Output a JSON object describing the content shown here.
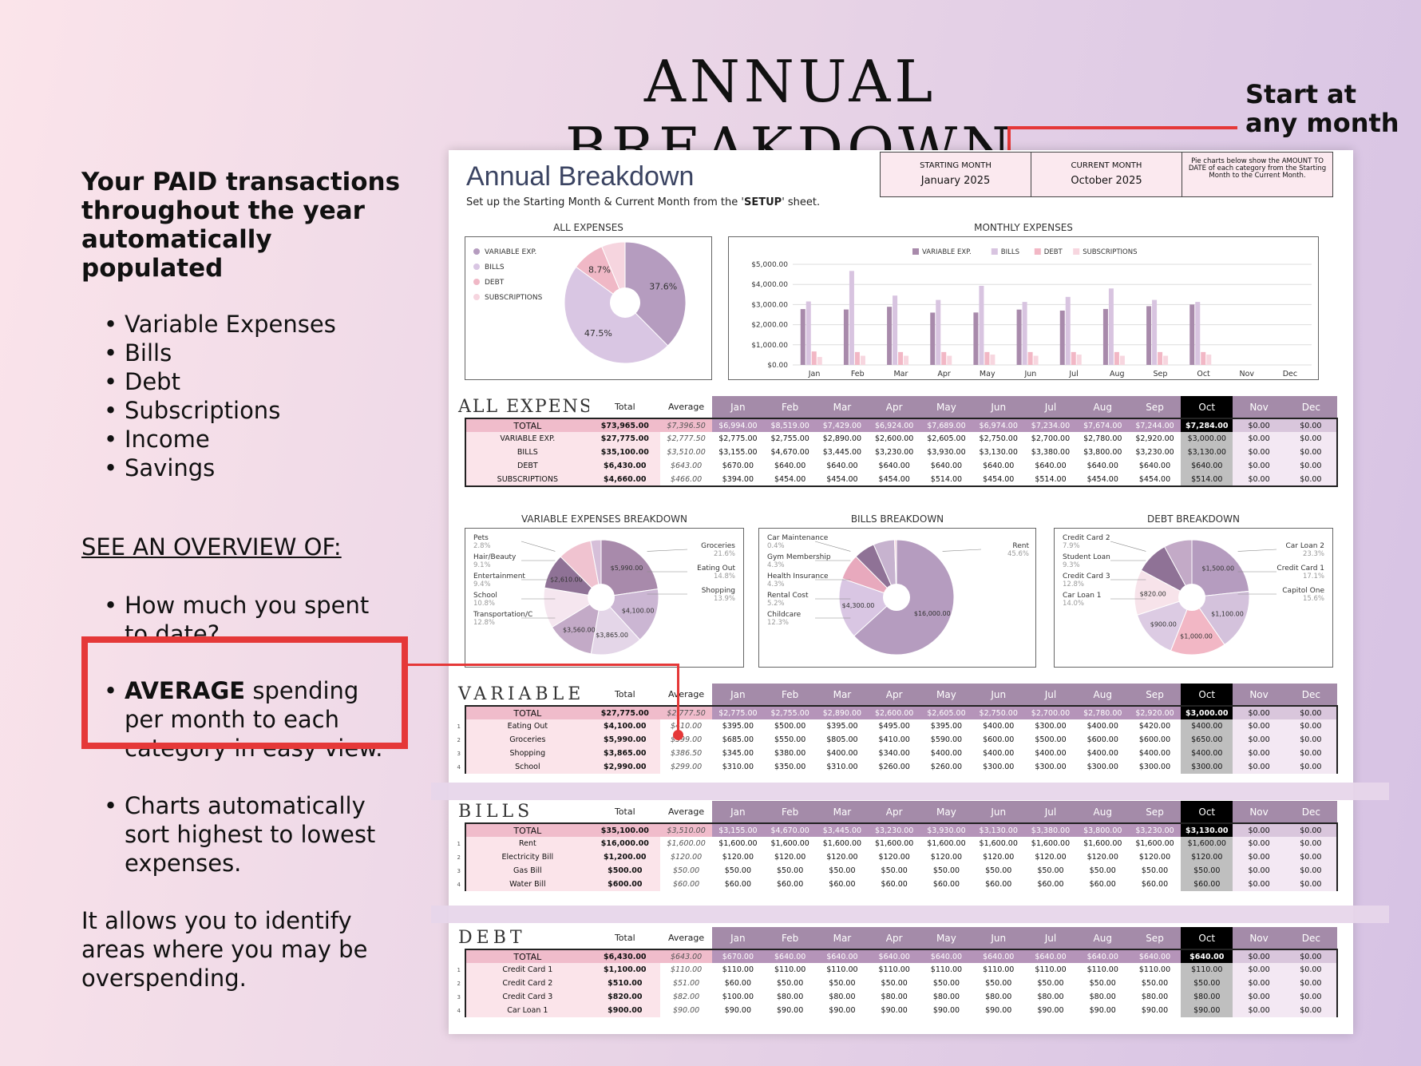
{
  "page": {
    "title": "ANNUAL BREAKDOWN",
    "callout": [
      "Start at",
      "any month"
    ]
  },
  "left": {
    "heading": [
      "Your PAID transactions",
      "throughout the year",
      "automatically populated"
    ],
    "bullets": [
      "Variable Expenses",
      "Bills",
      "Debt",
      "Subscriptions",
      "Income",
      "Savings"
    ],
    "overview": "SEE AN OVERVIEW OF:",
    "q1": [
      "How much you spent",
      "to date?"
    ],
    "q2_bold": "AVERAGE",
    "q2": [
      " spending",
      "per month to each",
      "category in easy view."
    ],
    "q3": [
      "Charts automatically",
      "sort highest to lowest",
      "expenses."
    ],
    "allows": [
      "It allows you to identify",
      "areas where you may be",
      "overspending."
    ]
  },
  "sheet": {
    "title": "Annual Breakdown",
    "subtitle_pre": "Set up the Starting Month & Current Month from the '",
    "subtitle_bold": "SETUP",
    "subtitle_post": "' sheet.",
    "starting_label": "STARTING MONTH",
    "starting_value": "January  2025",
    "current_label": "CURRENT MONTH",
    "current_value": "October  2025",
    "note": "Pie charts below show the AMOUNT TO DATE of each category from the Starting Month to the Current Month."
  },
  "chart_data": [
    {
      "type": "pie",
      "title": "ALL EXPENSES",
      "categories": [
        "VARIABLE EXP.",
        "BILLS",
        "DEBT",
        "SUBSCRIPTIONS"
      ],
      "values": [
        37.6,
        47.5,
        8.7,
        6.3
      ],
      "labels": [
        "37.6%",
        "47.5%",
        "8.7%",
        ""
      ],
      "colors": [
        "#b59cbf",
        "#d9c6e3",
        "#f0b8c6",
        "#f6d5df"
      ]
    },
    {
      "type": "bar",
      "title": "MONTHLY EXPENSES",
      "categories": [
        "Jan",
        "Feb",
        "Mar",
        "Apr",
        "May",
        "Jun",
        "Jul",
        "Aug",
        "Sep",
        "Oct",
        "Nov",
        "Dec"
      ],
      "ylim": [
        0,
        5000
      ],
      "yticks": [
        "$0.00",
        "$1,000.00",
        "$2,000.00",
        "$3,000.00",
        "$4,000.00",
        "$5,000.00"
      ],
      "series": [
        {
          "name": "VARIABLE EXP.",
          "color": "#a88aab",
          "values": [
            2775,
            2755,
            2890,
            2600,
            2605,
            2750,
            2700,
            2780,
            2920,
            3000,
            0,
            0
          ]
        },
        {
          "name": "BILLS",
          "color": "#d8c4e0",
          "values": [
            3155,
            4670,
            3445,
            3230,
            3930,
            3130,
            3380,
            3800,
            3230,
            3130,
            0,
            0
          ]
        },
        {
          "name": "DEBT",
          "color": "#f2b7c5",
          "values": [
            670,
            640,
            640,
            640,
            640,
            640,
            640,
            640,
            640,
            640,
            0,
            0
          ]
        },
        {
          "name": "SUBSCRIPTIONS",
          "color": "#f7d6df",
          "values": [
            394,
            454,
            454,
            454,
            514,
            454,
            514,
            454,
            454,
            514,
            0,
            0
          ]
        }
      ]
    },
    {
      "type": "pie",
      "title": "VARIABLE EXPENSES BREAKDOWN",
      "categories": [
        "Groceries",
        "Eating Out",
        "Shopping",
        "Transportation/C",
        "School",
        "Entertainment",
        "Hair/Beauty",
        "Pets"
      ],
      "values": [
        21.6,
        14.8,
        13.9,
        12.8,
        10.8,
        9.4,
        9.1,
        2.8
      ],
      "pct": [
        "21.6%",
        "14.8%",
        "13.9%",
        "12.8%",
        "10.8%",
        "9.4%",
        "9.1%",
        "2.8%"
      ],
      "labels": [
        "$5,990.00",
        "$4,100.00",
        "$3,865.00",
        "$3,560.00",
        "",
        "$2,610.00",
        "",
        ""
      ],
      "colors": [
        "#a88aab",
        "#cbb6d3",
        "#e4d6e8",
        "#c3aac7",
        "#f5e6ef",
        "#8f7296",
        "#f0c3d0",
        "#d6bfd9"
      ]
    },
    {
      "type": "pie",
      "title": "BILLS BREAKDOWN",
      "categories": [
        "Rent",
        "Childcare",
        "Rental Cost",
        "Health Insurance",
        "Gym Membership",
        "Car Maintenance"
      ],
      "values": [
        45.6,
        12.3,
        5.2,
        4.3,
        4.3,
        0.4
      ],
      "pct": [
        "45.6%",
        "12.3%",
        "5.2%",
        "4.3%",
        "4.3%",
        "0.4%"
      ],
      "labels": [
        "$16,000.00",
        "$4,300.00",
        "",
        "",
        "",
        ""
      ],
      "colors": [
        "#b59cbf",
        "#d9c6e3",
        "#e8a9bd",
        "#8f7296",
        "#c7b3cf",
        "#f6d5df",
        "#a88aab",
        "#f0c3d0",
        "#e4d6e8",
        "#b89bb8",
        "#d3b8d8",
        "#f5e6ef",
        "#9a7ea3"
      ]
    },
    {
      "type": "pie",
      "title": "DEBT BREAKDOWN",
      "categories": [
        "Car Loan 2",
        "Credit Card 1",
        "Capitol One",
        "Car Loan 1",
        "Credit Card 3",
        "Student Loan",
        "Credit Card 2"
      ],
      "values": [
        23.3,
        17.1,
        15.6,
        14.0,
        12.8,
        9.3,
        7.9
      ],
      "pct": [
        "23.3%",
        "17.1%",
        "15.6%",
        "14.0%",
        "12.8%",
        "9.3%",
        "7.9%"
      ],
      "labels": [
        "$1,500.00",
        "$1,100.00",
        "$1,000.00",
        "$900.00",
        "$820.00",
        "",
        ""
      ],
      "colors": [
        "#b59cbf",
        "#d4c2dc",
        "#f2b7c5",
        "#dccbe3",
        "#f7e3ea",
        "#8f7296",
        "#c3aac7"
      ]
    }
  ],
  "tables": {
    "months": [
      "Jan",
      "Feb",
      "Mar",
      "Apr",
      "May",
      "Jun",
      "Jul",
      "Aug",
      "Sep",
      "Oct",
      "Nov",
      "Dec"
    ],
    "total_label": "Total",
    "average_label": "Average",
    "row_total": "TOTAL",
    "all": {
      "title": "ALL EXPENSES",
      "total": [
        "$73,965.00",
        "$7,396.50",
        "$6,994.00",
        "$8,519.00",
        "$7,429.00",
        "$6,924.00",
        "$7,689.00",
        "$6,974.00",
        "$7,234.00",
        "$7,674.00",
        "$7,244.00",
        "$7,284.00",
        "$0.00",
        "$0.00"
      ],
      "rows": [
        [
          "",
          "VARIABLE EXP.",
          "$27,775.00",
          "$2,777.50",
          "$2,775.00",
          "$2,755.00",
          "$2,890.00",
          "$2,600.00",
          "$2,605.00",
          "$2,750.00",
          "$2,700.00",
          "$2,780.00",
          "$2,920.00",
          "$3,000.00",
          "$0.00",
          "$0.00"
        ],
        [
          "",
          "BILLS",
          "$35,100.00",
          "$3,510.00",
          "$3,155.00",
          "$4,670.00",
          "$3,445.00",
          "$3,230.00",
          "$3,930.00",
          "$3,130.00",
          "$3,380.00",
          "$3,800.00",
          "$3,230.00",
          "$3,130.00",
          "$0.00",
          "$0.00"
        ],
        [
          "",
          "DEBT",
          "$6,430.00",
          "$643.00",
          "$670.00",
          "$640.00",
          "$640.00",
          "$640.00",
          "$640.00",
          "$640.00",
          "$640.00",
          "$640.00",
          "$640.00",
          "$640.00",
          "$0.00",
          "$0.00"
        ],
        [
          "",
          "SUBSCRIPTIONS",
          "$4,660.00",
          "$466.00",
          "$394.00",
          "$454.00",
          "$454.00",
          "$454.00",
          "$514.00",
          "$454.00",
          "$514.00",
          "$454.00",
          "$454.00",
          "$514.00",
          "$0.00",
          "$0.00"
        ]
      ]
    },
    "variable": {
      "title": "VARIABLE",
      "total": [
        "$27,775.00",
        "$2,777.50",
        "$2,775.00",
        "$2,755.00",
        "$2,890.00",
        "$2,600.00",
        "$2,605.00",
        "$2,750.00",
        "$2,700.00",
        "$2,780.00",
        "$2,920.00",
        "$3,000.00",
        "$0.00",
        "$0.00"
      ],
      "rows": [
        [
          "1",
          "Eating Out",
          "$4,100.00",
          "$410.00",
          "$395.00",
          "$500.00",
          "$395.00",
          "$495.00",
          "$395.00",
          "$400.00",
          "$300.00",
          "$400.00",
          "$420.00",
          "$400.00",
          "$0.00",
          "$0.00"
        ],
        [
          "2",
          "Groceries",
          "$5,990.00",
          "$599.00",
          "$685.00",
          "$550.00",
          "$805.00",
          "$410.00",
          "$590.00",
          "$600.00",
          "$500.00",
          "$600.00",
          "$600.00",
          "$650.00",
          "$0.00",
          "$0.00"
        ],
        [
          "3",
          "Shopping",
          "$3,865.00",
          "$386.50",
          "$345.00",
          "$380.00",
          "$400.00",
          "$340.00",
          "$400.00",
          "$400.00",
          "$400.00",
          "$400.00",
          "$400.00",
          "$400.00",
          "$0.00",
          "$0.00"
        ],
        [
          "4",
          "School",
          "$2,990.00",
          "$299.00",
          "$310.00",
          "$350.00",
          "$310.00",
          "$260.00",
          "$260.00",
          "$300.00",
          "$300.00",
          "$300.00",
          "$300.00",
          "$300.00",
          "$0.00",
          "$0.00"
        ]
      ]
    },
    "bills": {
      "title": "BILLS",
      "total": [
        "$35,100.00",
        "$3,510.00",
        "$3,155.00",
        "$4,670.00",
        "$3,445.00",
        "$3,230.00",
        "$3,930.00",
        "$3,130.00",
        "$3,380.00",
        "$3,800.00",
        "$3,230.00",
        "$3,130.00",
        "$0.00",
        "$0.00"
      ],
      "rows": [
        [
          "1",
          "Rent",
          "$16,000.00",
          "$1,600.00",
          "$1,600.00",
          "$1,600.00",
          "$1,600.00",
          "$1,600.00",
          "$1,600.00",
          "$1,600.00",
          "$1,600.00",
          "$1,600.00",
          "$1,600.00",
          "$1,600.00",
          "$0.00",
          "$0.00"
        ],
        [
          "2",
          "Electricity Bill",
          "$1,200.00",
          "$120.00",
          "$120.00",
          "$120.00",
          "$120.00",
          "$120.00",
          "$120.00",
          "$120.00",
          "$120.00",
          "$120.00",
          "$120.00",
          "$120.00",
          "$0.00",
          "$0.00"
        ],
        [
          "3",
          "Gas Bill",
          "$500.00",
          "$50.00",
          "$50.00",
          "$50.00",
          "$50.00",
          "$50.00",
          "$50.00",
          "$50.00",
          "$50.00",
          "$50.00",
          "$50.00",
          "$50.00",
          "$0.00",
          "$0.00"
        ],
        [
          "4",
          "Water Bill",
          "$600.00",
          "$60.00",
          "$60.00",
          "$60.00",
          "$60.00",
          "$60.00",
          "$60.00",
          "$60.00",
          "$60.00",
          "$60.00",
          "$60.00",
          "$60.00",
          "$0.00",
          "$0.00"
        ]
      ]
    },
    "debt": {
      "title": "DEBT",
      "total": [
        "$6,430.00",
        "$643.00",
        "$670.00",
        "$640.00",
        "$640.00",
        "$640.00",
        "$640.00",
        "$640.00",
        "$640.00",
        "$640.00",
        "$640.00",
        "$640.00",
        "$0.00",
        "$0.00"
      ],
      "rows": [
        [
          "1",
          "Credit Card 1",
          "$1,100.00",
          "$110.00",
          "$110.00",
          "$110.00",
          "$110.00",
          "$110.00",
          "$110.00",
          "$110.00",
          "$110.00",
          "$110.00",
          "$110.00",
          "$110.00",
          "$0.00",
          "$0.00"
        ],
        [
          "2",
          "Credit Card 2",
          "$510.00",
          "$51.00",
          "$60.00",
          "$50.00",
          "$50.00",
          "$50.00",
          "$50.00",
          "$50.00",
          "$50.00",
          "$50.00",
          "$50.00",
          "$50.00",
          "$0.00",
          "$0.00"
        ],
        [
          "3",
          "Credit Card 3",
          "$820.00",
          "$82.00",
          "$100.00",
          "$80.00",
          "$80.00",
          "$80.00",
          "$80.00",
          "$80.00",
          "$80.00",
          "$80.00",
          "$80.00",
          "$80.00",
          "$0.00",
          "$0.00"
        ],
        [
          "4",
          "Car Loan 1",
          "$900.00",
          "$90.00",
          "$90.00",
          "$90.00",
          "$90.00",
          "$90.00",
          "$90.00",
          "$90.00",
          "$90.00",
          "$90.00",
          "$90.00",
          "$90.00",
          "$0.00",
          "$0.00"
        ]
      ]
    }
  }
}
